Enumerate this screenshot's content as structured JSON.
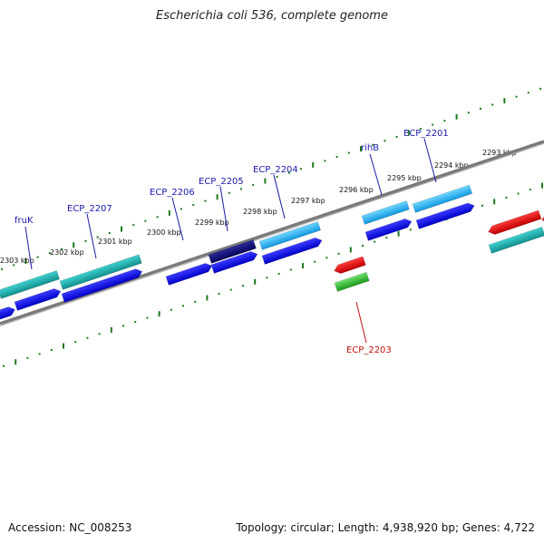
{
  "title": "Escherichia coli 536, complete genome",
  "footer": {
    "accession": "Accession: NC_008253",
    "summary": "Topology: circular; Length: 4,938,920 bp; Genes: 4,722"
  },
  "colors": {
    "backbone": "#7a7a7a",
    "tick": "#1f7a1f",
    "forward_label": "#1a1aa8",
    "reverse_label": "#c01010"
  },
  "ticks_top": [
    {
      "label": "2303 kbp"
    },
    {
      "label": "2302 kbp"
    },
    {
      "label": "2301 kbp"
    },
    {
      "label": "2300 kbp"
    },
    {
      "label": "2299 kbp"
    },
    {
      "label": "2298 kbp"
    },
    {
      "label": "2297 kbp"
    },
    {
      "label": "2296 kbp"
    },
    {
      "label": "2295 kbp"
    },
    {
      "label": "2294 kbp"
    },
    {
      "label": "2293 kbp"
    }
  ],
  "gene_labels": [
    {
      "name": "fruK",
      "strand": "forward"
    },
    {
      "name": "ECP_2207",
      "strand": "forward"
    },
    {
      "name": "ECP_2206",
      "strand": "forward"
    },
    {
      "name": "ECP_2205",
      "strand": "forward"
    },
    {
      "name": "ECP_2204",
      "strand": "forward"
    },
    {
      "name": "rihB",
      "strand": "forward"
    },
    {
      "name": "ECP_2201",
      "strand": "forward"
    },
    {
      "name": "ECP_2203",
      "strand": "reverse"
    }
  ]
}
